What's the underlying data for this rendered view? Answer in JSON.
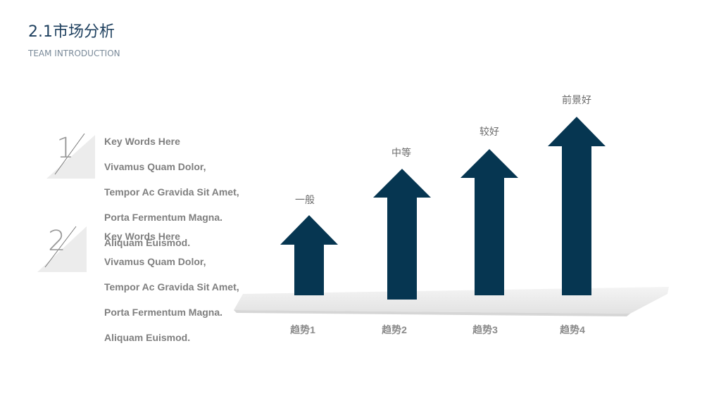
{
  "header": {
    "title": "2.1市场分析",
    "subtitle": "TEAM INTRODUCTION"
  },
  "items": [
    {
      "number": "1",
      "lines": [
        "Key Words Here",
        "Vivamus Quam Dolor,",
        "Tempor Ac Gravida Sit Amet,",
        "Porta Fermentum Magna.",
        "Aliquam Euismod."
      ]
    },
    {
      "number": "2",
      "lines": [
        "Key Words Here",
        "Vivamus Quam Dolor,",
        "Tempor Ac Gravida Sit Amet,",
        "Porta Fermentum Magna.",
        "Aliquam Euismod."
      ]
    }
  ],
  "arrows": [
    {
      "top_label": "一般",
      "bottom_label": "趋势1"
    },
    {
      "top_label": "中等",
      "bottom_label": "趋势2"
    },
    {
      "top_label": "较好",
      "bottom_label": "趋势3"
    },
    {
      "top_label": "前景好",
      "bottom_label": "趋势4"
    }
  ]
}
